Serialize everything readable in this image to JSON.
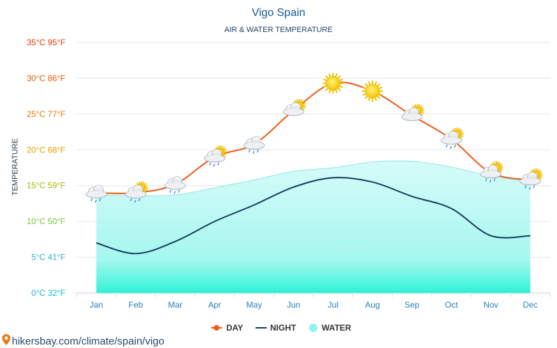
{
  "chart_data": {
    "type": "line",
    "title": "Vigo Spain",
    "subtitle": "AIR & WATER TEMPERATURE",
    "ylabel": "TEMPERATURE",
    "ylim": [
      0,
      35
    ],
    "grid": true,
    "legend_position": "bottom-center",
    "categories": [
      "Jan",
      "Feb",
      "Mar",
      "Apr",
      "May",
      "Jun",
      "Jul",
      "Aug",
      "Sep",
      "Oct",
      "Nov",
      "Dec"
    ],
    "yticks": [
      {
        "value": 0,
        "label": "0°C 32°F",
        "color": "#14b8c7"
      },
      {
        "value": 5,
        "label": "5°C 41°F",
        "color": "#2fb6c4"
      },
      {
        "value": 10,
        "label": "10°C 50°F",
        "color": "#78c43d"
      },
      {
        "value": 15,
        "label": "15°C 59°F",
        "color": "#a5b800"
      },
      {
        "value": 20,
        "label": "20°C 68°F",
        "color": "#e2a000"
      },
      {
        "value": 25,
        "label": "25°C 77°F",
        "color": "#e87a00"
      },
      {
        "value": 30,
        "label": "30°C 86°F",
        "color": "#e05a00"
      },
      {
        "value": 35,
        "label": "35°C 95°F",
        "color": "#de3a00"
      }
    ],
    "series": [
      {
        "name": "DAY",
        "color": "#f05a1a",
        "values": [
          14.0,
          14.0,
          15.2,
          19.0,
          20.8,
          25.5,
          29.3,
          28.2,
          24.8,
          21.5,
          16.8,
          15.8
        ]
      },
      {
        "name": "NIGHT",
        "color": "#173d5e",
        "values": [
          7.0,
          5.5,
          7.2,
          10.0,
          12.3,
          14.8,
          16.1,
          15.5,
          13.5,
          11.8,
          8.0,
          8.0
        ]
      },
      {
        "name": "WATER",
        "color": "#8ff3ee",
        "values": [
          13.7,
          13.6,
          13.7,
          14.7,
          15.8,
          17.0,
          17.5,
          18.3,
          18.4,
          17.6,
          16.3,
          15.6
        ]
      }
    ],
    "weather_icons": [
      "cloud-rain-icon",
      "partly-cloudy-rain-icon",
      "cloud-rain-icon",
      "partly-cloudy-rain-icon",
      "cloud-rain-icon",
      "partly-cloudy-icon",
      "sun-icon",
      "sun-icon",
      "partly-cloudy-icon",
      "partly-cloudy-rain-icon",
      "partly-cloudy-rain-icon",
      "partly-cloudy-rain-icon"
    ]
  },
  "footer": {
    "text": "hikersbay.com/climate/spain/vigo"
  },
  "colors": {
    "title": "#1a5a96",
    "axis_text": "#2a7fb6",
    "grid": "#e6e6e6"
  }
}
